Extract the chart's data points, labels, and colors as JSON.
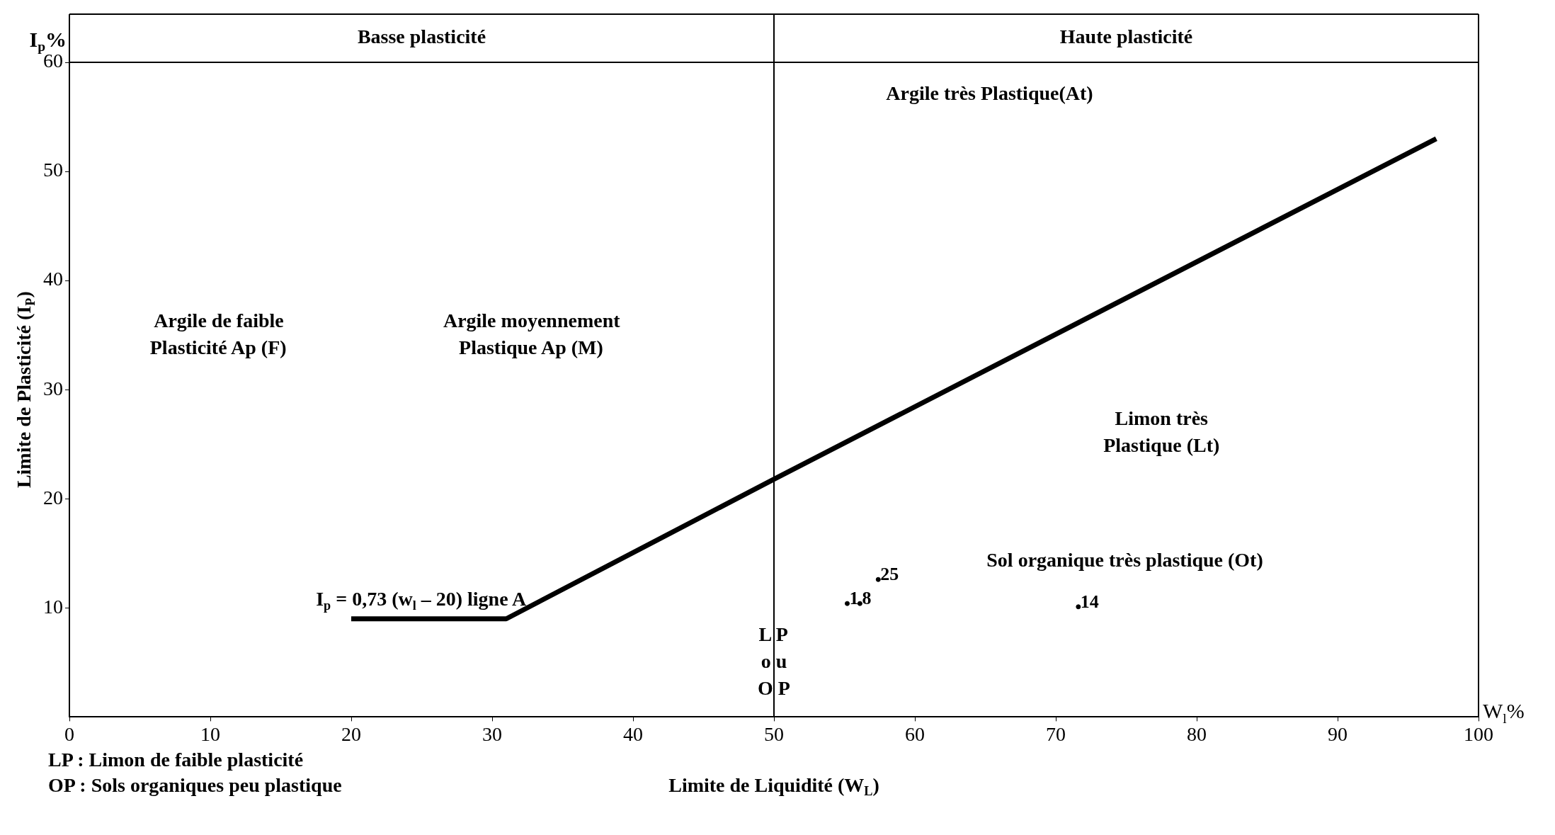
{
  "chart_data": {
    "type": "scatter",
    "xlabel": "Limite de Liquidité (W$_{L}$)",
    "ylabel": "Limite de Plasticité (I$_{P}$)",
    "xlim": [
      0,
      100
    ],
    "xticks": [
      0,
      10,
      20,
      30,
      40,
      50,
      60,
      70,
      80,
      90,
      100
    ],
    "ylim": [
      0,
      60
    ],
    "yticks": [
      10,
      20,
      30,
      40,
      50,
      60
    ],
    "grid": false,
    "legend": false,
    "series": [
      {
        "type": "line",
        "marker": "none",
        "color": "#000000",
        "x": [
          20,
          31,
          50,
          97
        ],
        "values": [
          9,
          9,
          21.8,
          53
        ]
      },
      {
        "marker": "circle",
        "color": "#000000",
        "x": [
          55.2,
          56.1,
          57.4,
          71.6
        ],
        "values": [
          10.4,
          10.4,
          12.6,
          10.1
        ]
      }
    ],
    "ref_lines": [
      {
        "axis": "x",
        "value": 50
      }
    ],
    "annotations": [
      "Basse plasticité",
      "Haute plasticité",
      "Argile très Plastique(At)",
      "Argile de faible\nPlasticité Ap (F)",
      "Argile moyennement\nPlastique Ap (M)",
      "Limon très\nPlastique (Lt)",
      "Sol organique très plastique (Ot)",
      "L P\no u\nO P",
      "I$_{p}$%",
      "W$_{l}$%",
      "LP : Limon de faible plasticité",
      "OP : Sols organiques peu plastique",
      {
        "text": "I$_{p}$ = 0,73 (w$_{l}$ – 20) ligne A",
        "x": 25,
        "y": 9
      },
      {
        "text": "1",
        "x": 55.2,
        "y": 10.4
      },
      {
        "text": "8",
        "x": 56.1,
        "y": 10.4
      },
      {
        "text": "25",
        "x": 57.4,
        "y": 12.6
      },
      {
        "text": "14",
        "x": 71.6,
        "y": 10.1
      }
    ]
  }
}
